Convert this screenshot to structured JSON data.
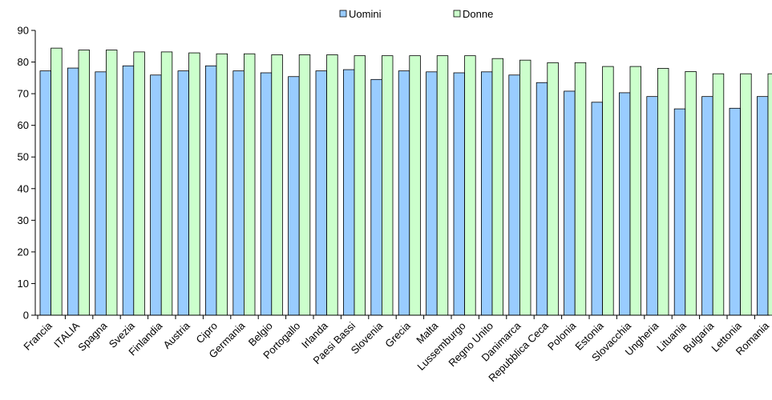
{
  "chart_data": {
    "type": "bar",
    "categories": [
      "Francia",
      "ITALIA",
      "Spagna",
      "Svezia",
      "Finlandia",
      "Austria",
      "Cipro",
      "Germania",
      "Belgio",
      "Portogallo",
      "Irlanda",
      "Paesi Bassi",
      "Slovenia",
      "Grecia",
      "Malta",
      "Lussemburgo",
      "Regno Unito",
      "Danimarca",
      "Repubblica Ceca",
      "Polonia",
      "Estonia",
      "Slovacchia",
      "Ungheria",
      "Lituania",
      "Bulgaria",
      "Lettonia",
      "Romania"
    ],
    "series": [
      {
        "name": "Uomini",
        "color": "#99ccff",
        "values": [
          77.2,
          78.1,
          76.9,
          78.8,
          75.9,
          77.2,
          78.8,
          77.2,
          76.6,
          75.4,
          77.2,
          77.6,
          74.5,
          77.2,
          76.9,
          76.6,
          76.9,
          75.9,
          73.5,
          70.8,
          67.3,
          70.3,
          69.1,
          65.2,
          69.1,
          65.4,
          69.1
        ]
      },
      {
        "name": "Donne",
        "color": "#ccffcc",
        "values": [
          84.4,
          83.8,
          83.8,
          83.2,
          83.2,
          82.9,
          82.6,
          82.6,
          82.3,
          82.3,
          82.3,
          82.0,
          82.0,
          82.0,
          82.0,
          82.0,
          81.1,
          80.6,
          79.8,
          79.8,
          78.6,
          78.6,
          78.0,
          77.0,
          76.3,
          76.3,
          76.3
        ]
      }
    ],
    "ylim": [
      0,
      90
    ],
    "yticks": [
      "0",
      "10",
      "20",
      "30",
      "40",
      "50",
      "60",
      "70",
      "80",
      "90"
    ],
    "grid": false,
    "legend_position": "top-center",
    "title": "",
    "xlabel": "",
    "ylabel": ""
  }
}
